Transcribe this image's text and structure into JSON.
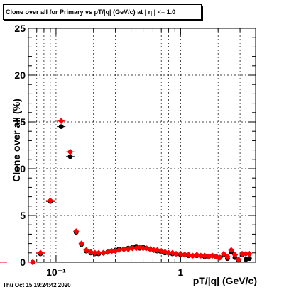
{
  "title": "Clone  over all for Primary vs pT/|q| (GeV/c) at |  η | <= 1.0",
  "timestamp": "Thu Oct 15 19:24:42 2020",
  "chart_data": {
    "type": "scatter",
    "title": "Clone  over all for Primary vs pT/|q| (GeV/c) at |  η | <= 1.0",
    "xlabel": "pT/|q| (GeV/c)",
    "ylabel": "Clone  over all (%)",
    "xscale": "log",
    "xlim": [
      0.06,
      4.0
    ],
    "ylim": [
      0,
      25
    ],
    "grid": true,
    "ytick_labels": [
      "0",
      "5",
      "10",
      "15",
      "20",
      "25"
    ],
    "xtick_labels": [
      "10⁻¹",
      "1"
    ],
    "colors": {
      "black": "#000000",
      "red": "#ff0000"
    },
    "series": [
      {
        "marker": "circle",
        "color": "#000000",
        "x": [
          0.065,
          0.075,
          0.09,
          0.11,
          0.13,
          0.145,
          0.16,
          0.175,
          0.19,
          0.205,
          0.22,
          0.24,
          0.26,
          0.28,
          0.3,
          0.32,
          0.35,
          0.38,
          0.41,
          0.44,
          0.47,
          0.5,
          0.53,
          0.57,
          0.61,
          0.65,
          0.7,
          0.75,
          0.8,
          0.86,
          0.92,
          1.0,
          1.08,
          1.16,
          1.25,
          1.35,
          1.45,
          1.56,
          1.68,
          1.8,
          1.93,
          2.07,
          2.22,
          2.38,
          2.55,
          2.73,
          2.92,
          3.12,
          3.34,
          3.57
        ],
        "y": [
          0.0,
          0.9,
          6.5,
          14.5,
          11.3,
          3.2,
          1.9,
          1.2,
          1.0,
          0.9,
          0.9,
          1.0,
          1.1,
          1.2,
          1.3,
          1.4,
          1.4,
          1.5,
          1.6,
          1.7,
          1.5,
          1.6,
          1.5,
          1.4,
          1.3,
          1.2,
          1.1,
          1.0,
          1.0,
          0.9,
          0.9,
          0.8,
          0.8,
          0.7,
          0.7,
          0.7,
          0.7,
          0.6,
          0.6,
          0.7,
          0.6,
          0.5,
          0.8,
          0.4,
          1.1,
          0.5,
          0.2,
          0.8,
          0.3,
          0.4
        ]
      },
      {
        "marker": "diamond",
        "color": "#ff0000",
        "x": [
          0.065,
          0.075,
          0.09,
          0.11,
          0.13,
          0.145,
          0.16,
          0.175,
          0.19,
          0.205,
          0.22,
          0.24,
          0.26,
          0.28,
          0.3,
          0.32,
          0.35,
          0.38,
          0.41,
          0.44,
          0.47,
          0.5,
          0.53,
          0.57,
          0.61,
          0.65,
          0.7,
          0.75,
          0.8,
          0.86,
          0.92,
          1.0,
          1.08,
          1.16,
          1.25,
          1.35,
          1.45,
          1.56,
          1.68,
          1.8,
          1.93,
          2.07,
          2.22,
          2.38,
          2.55,
          2.73,
          2.92,
          3.12,
          3.34,
          3.57
        ],
        "y": [
          0.0,
          1.0,
          6.6,
          15.1,
          11.8,
          3.3,
          2.0,
          1.3,
          1.1,
          1.0,
          1.0,
          1.0,
          1.1,
          1.2,
          1.2,
          1.3,
          1.4,
          1.4,
          1.5,
          1.5,
          1.6,
          1.5,
          1.5,
          1.4,
          1.3,
          1.3,
          1.2,
          1.1,
          1.0,
          1.0,
          0.9,
          0.9,
          0.8,
          0.8,
          0.7,
          0.8,
          0.7,
          0.7,
          0.6,
          0.7,
          0.6,
          0.5,
          0.9,
          0.6,
          1.3,
          0.8,
          0.3,
          0.9,
          0.9,
          0.9
        ]
      }
    ]
  }
}
